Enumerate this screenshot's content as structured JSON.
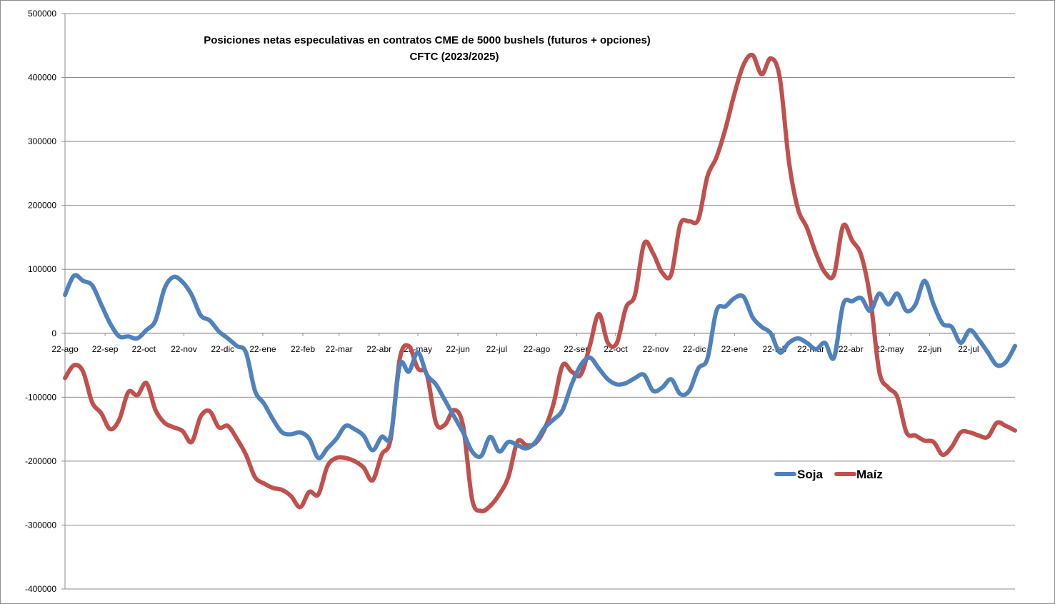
{
  "chart_data": {
    "type": "line",
    "title": "Posiciones netas especulativas en contratos CME de 5000 bushels (futuros + opciones)",
    "subtitle": "CFTC (2023/2025)",
    "xlabel": "",
    "ylabel": "",
    "ylim": [
      -400000,
      500000
    ],
    "yticks": [
      -400000,
      -300000,
      -200000,
      -100000,
      0,
      100000,
      200000,
      300000,
      400000,
      500000
    ],
    "ytick_labels": [
      "-400000",
      "-300000",
      "-200000",
      "-100000",
      "0",
      "100000",
      "200000",
      "300000",
      "400000",
      "500000"
    ],
    "x_range": [
      0,
      105
    ],
    "x_tick_positions": [
      0,
      4.43,
      8.71,
      13.14,
      17.43,
      21.86,
      26.29,
      30.29,
      34.71,
      39,
      43.43,
      47.71,
      52.14,
      56.57,
      60.86,
      65.29,
      69.57,
      74,
      78.43,
      82.43,
      86.86,
      91.14,
      95.57,
      99.86
    ],
    "x_tick_labels": [
      "22-ago",
      "22-sep",
      "22-oct",
      "22-nov",
      "22-dic",
      "22-ene",
      "22-feb",
      "22-mar",
      "22-abr",
      "22-may",
      "22-jun",
      "22-jul",
      "22-ago",
      "22-sep",
      "22-oct",
      "22-nov",
      "22-dic",
      "22-ene",
      "22-feb",
      "22-mar",
      "22-abr",
      "22-may",
      "22-jun",
      "22-jul"
    ],
    "grid": true,
    "legend_position": "bottom-right",
    "series": [
      {
        "name": "Soja",
        "color": "#4f81bd",
        "points": [
          [
            0,
            60000
          ],
          [
            1,
            90000
          ],
          [
            2,
            82000
          ],
          [
            3,
            75000
          ],
          [
            4,
            45000
          ],
          [
            5,
            15000
          ],
          [
            6,
            -5000
          ],
          [
            7,
            -5000
          ],
          [
            8,
            -8000
          ],
          [
            9,
            5000
          ],
          [
            10,
            20000
          ],
          [
            11,
            70000
          ],
          [
            12,
            88000
          ],
          [
            13,
            80000
          ],
          [
            14,
            60000
          ],
          [
            15,
            28000
          ],
          [
            16,
            20000
          ],
          [
            17,
            3000
          ],
          [
            18,
            -8000
          ],
          [
            19,
            -20000
          ],
          [
            20,
            -30000
          ],
          [
            21,
            -90000
          ],
          [
            22,
            -110000
          ],
          [
            23,
            -135000
          ],
          [
            24,
            -155000
          ],
          [
            25,
            -158000
          ],
          [
            26,
            -155000
          ],
          [
            27,
            -165000
          ],
          [
            28,
            -195000
          ],
          [
            29,
            -180000
          ],
          [
            30,
            -165000
          ],
          [
            31,
            -145000
          ],
          [
            32,
            -150000
          ],
          [
            33,
            -160000
          ],
          [
            34,
            -183000
          ],
          [
            35,
            -162000
          ],
          [
            36,
            -160000
          ],
          [
            37,
            -50000
          ],
          [
            38,
            -60000
          ],
          [
            39,
            -30000
          ],
          [
            40,
            -65000
          ],
          [
            41,
            -80000
          ],
          [
            42,
            -105000
          ],
          [
            43,
            -130000
          ],
          [
            44,
            -155000
          ],
          [
            45,
            -185000
          ],
          [
            46,
            -192000
          ],
          [
            47,
            -162000
          ],
          [
            48,
            -185000
          ],
          [
            49,
            -170000
          ],
          [
            50,
            -175000
          ],
          [
            51,
            -180000
          ],
          [
            52,
            -170000
          ],
          [
            53,
            -148000
          ],
          [
            54,
            -135000
          ],
          [
            55,
            -120000
          ],
          [
            56,
            -80000
          ],
          [
            57,
            -50000
          ],
          [
            58,
            -38000
          ],
          [
            59,
            -55000
          ],
          [
            60,
            -72000
          ],
          [
            61,
            -80000
          ],
          [
            62,
            -78000
          ],
          [
            63,
            -70000
          ],
          [
            64,
            -65000
          ],
          [
            65,
            -90000
          ],
          [
            66,
            -85000
          ],
          [
            67,
            -72000
          ],
          [
            68,
            -95000
          ],
          [
            69,
            -90000
          ],
          [
            70,
            -55000
          ],
          [
            71,
            -40000
          ],
          [
            72,
            35000
          ],
          [
            73,
            42000
          ],
          [
            74,
            55000
          ],
          [
            75,
            57000
          ],
          [
            76,
            25000
          ],
          [
            77,
            10000
          ],
          [
            78,
            0
          ],
          [
            79,
            -30000
          ],
          [
            80,
            -15000
          ],
          [
            81,
            -8000
          ],
          [
            82,
            -15000
          ],
          [
            83,
            -25000
          ],
          [
            84,
            -15000
          ],
          [
            85,
            -38000
          ],
          [
            86,
            45000
          ],
          [
            87,
            50000
          ],
          [
            88,
            55000
          ],
          [
            89,
            35000
          ],
          [
            90,
            62000
          ],
          [
            91,
            45000
          ],
          [
            92,
            62000
          ],
          [
            93,
            35000
          ],
          [
            94,
            45000
          ],
          [
            95,
            82000
          ],
          [
            96,
            45000
          ],
          [
            97,
            15000
          ],
          [
            98,
            10000
          ],
          [
            99,
            -15000
          ],
          [
            100,
            5000
          ],
          [
            101,
            -10000
          ],
          [
            102,
            -30000
          ],
          [
            103,
            -50000
          ],
          [
            104,
            -45000
          ],
          [
            105,
            -20000
          ]
        ]
      },
      {
        "name": "Maíz",
        "color": "#c0504d",
        "points": [
          [
            0,
            -70000
          ],
          [
            1,
            -50000
          ],
          [
            2,
            -60000
          ],
          [
            3,
            -108000
          ],
          [
            4,
            -125000
          ],
          [
            5,
            -150000
          ],
          [
            6,
            -135000
          ],
          [
            7,
            -92000
          ],
          [
            8,
            -97000
          ],
          [
            9,
            -78000
          ],
          [
            10,
            -120000
          ],
          [
            11,
            -140000
          ],
          [
            12,
            -147000
          ],
          [
            13,
            -153000
          ],
          [
            14,
            -170000
          ],
          [
            15,
            -130000
          ],
          [
            16,
            -122000
          ],
          [
            17,
            -147000
          ],
          [
            18,
            -145000
          ],
          [
            19,
            -165000
          ],
          [
            20,
            -190000
          ],
          [
            21,
            -225000
          ],
          [
            22,
            -235000
          ],
          [
            23,
            -242000
          ],
          [
            24,
            -245000
          ],
          [
            25,
            -255000
          ],
          [
            26,
            -272000
          ],
          [
            27,
            -248000
          ],
          [
            28,
            -252000
          ],
          [
            29,
            -208000
          ],
          [
            30,
            -195000
          ],
          [
            31,
            -195000
          ],
          [
            32,
            -200000
          ],
          [
            33,
            -210000
          ],
          [
            34,
            -230000
          ],
          [
            35,
            -190000
          ],
          [
            36,
            -165000
          ],
          [
            37,
            -40000
          ],
          [
            38,
            -20000
          ],
          [
            39,
            -55000
          ],
          [
            40,
            -65000
          ],
          [
            41,
            -140000
          ],
          [
            42,
            -143000
          ],
          [
            43,
            -120000
          ],
          [
            44,
            -145000
          ],
          [
            45,
            -260000
          ],
          [
            46,
            -278000
          ],
          [
            47,
            -270000
          ],
          [
            48,
            -252000
          ],
          [
            49,
            -225000
          ],
          [
            50,
            -170000
          ],
          [
            51,
            -175000
          ],
          [
            52,
            -172000
          ],
          [
            53,
            -150000
          ],
          [
            54,
            -110000
          ],
          [
            55,
            -50000
          ],
          [
            56,
            -60000
          ],
          [
            57,
            -65000
          ],
          [
            58,
            -20000
          ],
          [
            59,
            30000
          ],
          [
            60,
            -15000
          ],
          [
            61,
            -15000
          ],
          [
            62,
            40000
          ],
          [
            63,
            60000
          ],
          [
            64,
            140000
          ],
          [
            65,
            125000
          ],
          [
            66,
            95000
          ],
          [
            67,
            92000
          ],
          [
            68,
            170000
          ],
          [
            69,
            175000
          ],
          [
            70,
            178000
          ],
          [
            71,
            245000
          ],
          [
            72,
            275000
          ],
          [
            73,
            320000
          ],
          [
            74,
            375000
          ],
          [
            75,
            420000
          ],
          [
            76,
            435000
          ],
          [
            77,
            405000
          ],
          [
            78,
            430000
          ],
          [
            79,
            400000
          ],
          [
            80,
            270000
          ],
          [
            81,
            195000
          ],
          [
            82,
            165000
          ],
          [
            83,
            125000
          ],
          [
            84,
            95000
          ],
          [
            85,
            92000
          ],
          [
            86,
            168000
          ],
          [
            87,
            145000
          ],
          [
            88,
            122000
          ],
          [
            89,
            55000
          ],
          [
            90,
            -60000
          ],
          [
            91,
            -85000
          ],
          [
            92,
            -100000
          ],
          [
            93,
            -155000
          ],
          [
            94,
            -160000
          ],
          [
            95,
            -168000
          ],
          [
            96,
            -170000
          ],
          [
            97,
            -190000
          ],
          [
            98,
            -178000
          ],
          [
            99,
            -155000
          ],
          [
            100,
            -155000
          ],
          [
            101,
            -160000
          ],
          [
            102,
            -162000
          ],
          [
            103,
            -140000
          ],
          [
            104,
            -145000
          ],
          [
            105,
            -152000
          ]
        ]
      }
    ]
  }
}
